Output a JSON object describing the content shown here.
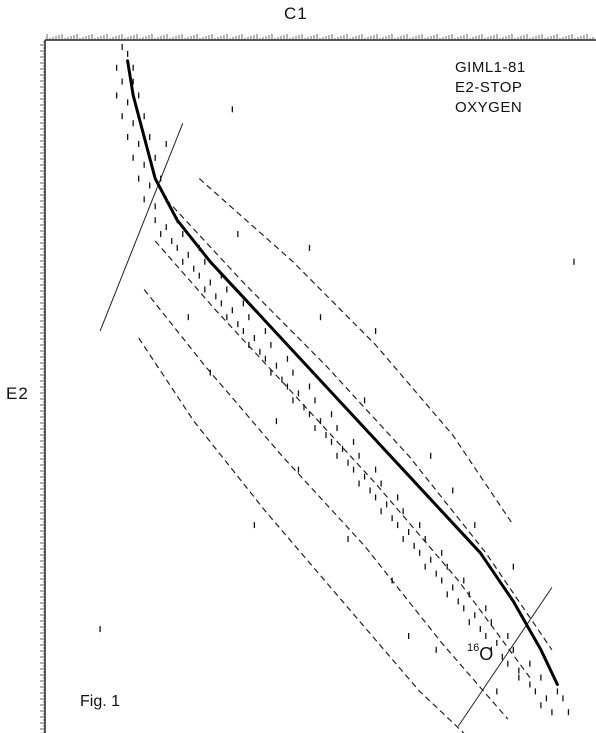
{
  "chart_data": {
    "type": "scatter",
    "title": "",
    "xlabel": "C1",
    "ylabel": "E2",
    "legend": {
      "lines": [
        "GIML1-81",
        "E2-STOP",
        "OXYGEN"
      ],
      "placement": "top-right"
    },
    "figure_label": "Fig. 1",
    "isotope_label": {
      "mass": "16",
      "symbol": "O"
    },
    "grid": false,
    "axes_visible": "top and left edges with dense tick-mark readout",
    "xlim": [
      0,
      100
    ],
    "ylim": [
      0,
      100
    ],
    "mean_curve": {
      "label": "16O",
      "style": "solid-thick",
      "points": [
        [
          15,
          97
        ],
        [
          16,
          92
        ],
        [
          18,
          86
        ],
        [
          20,
          80
        ],
        [
          24,
          74
        ],
        [
          30,
          68
        ],
        [
          37,
          62
        ],
        [
          44,
          56
        ],
        [
          51,
          50
        ],
        [
          58,
          44
        ],
        [
          65,
          38
        ],
        [
          72,
          32
        ],
        [
          79,
          26
        ],
        [
          85,
          19
        ],
        [
          90,
          12
        ],
        [
          93,
          7
        ]
      ]
    },
    "band_lines": [
      {
        "style": "dashed",
        "points": [
          [
            28,
            80
          ],
          [
            45,
            68
          ],
          [
            60,
            56
          ],
          [
            74,
            43
          ],
          [
            85,
            30
          ]
        ]
      },
      {
        "style": "dashed",
        "points": [
          [
            22,
            77
          ],
          [
            36,
            65
          ],
          [
            51,
            53
          ],
          [
            66,
            40
          ],
          [
            80,
            26
          ],
          [
            92,
            12
          ]
        ]
      },
      {
        "style": "dashed",
        "points": [
          [
            20,
            71
          ],
          [
            31,
            61
          ],
          [
            45,
            49
          ],
          [
            60,
            36
          ],
          [
            75,
            22
          ],
          [
            88,
            8
          ]
        ]
      },
      {
        "style": "dashed",
        "points": [
          [
            18,
            64
          ],
          [
            29,
            53
          ],
          [
            43,
            40
          ],
          [
            58,
            27
          ],
          [
            72,
            13
          ],
          [
            84,
            2
          ]
        ]
      },
      {
        "style": "dashed",
        "points": [
          [
            17,
            57
          ],
          [
            27,
            45
          ],
          [
            40,
            32
          ],
          [
            54,
            19
          ],
          [
            68,
            6
          ],
          [
            76,
            0
          ]
        ]
      }
    ],
    "gate_lines": [
      {
        "style": "solid-thin",
        "points": [
          [
            10,
            58
          ],
          [
            25,
            88
          ]
        ]
      },
      {
        "style": "solid-thin",
        "points": [
          [
            75,
            1
          ],
          [
            92,
            21
          ]
        ]
      }
    ],
    "point_marker": "vertical-tick",
    "scatter_density": "dense events clustered along the mean curve, about ±4% spread, with sparse stray events",
    "points": [
      [
        14,
        99
      ],
      [
        15,
        98
      ],
      [
        13,
        96
      ],
      [
        16,
        96
      ],
      [
        14,
        94
      ],
      [
        16,
        94
      ],
      [
        13,
        92
      ],
      [
        15,
        91
      ],
      [
        17,
        92
      ],
      [
        14,
        89
      ],
      [
        16,
        88
      ],
      [
        18,
        89
      ],
      [
        15,
        86
      ],
      [
        17,
        85
      ],
      [
        19,
        86
      ],
      [
        16,
        83
      ],
      [
        18,
        82
      ],
      [
        20,
        83
      ],
      [
        17,
        80
      ],
      [
        19,
        79
      ],
      [
        21,
        80
      ],
      [
        18,
        77
      ],
      [
        20,
        76
      ],
      [
        22,
        77
      ],
      [
        20,
        74
      ],
      [
        22,
        73
      ],
      [
        24,
        74
      ],
      [
        21,
        72
      ],
      [
        23,
        71
      ],
      [
        25,
        72
      ],
      [
        24,
        70
      ],
      [
        26,
        69
      ],
      [
        28,
        70
      ],
      [
        25,
        68
      ],
      [
        27,
        67
      ],
      [
        29,
        68
      ],
      [
        28,
        66
      ],
      [
        30,
        65
      ],
      [
        32,
        66
      ],
      [
        29,
        64
      ],
      [
        31,
        63
      ],
      [
        33,
        64
      ],
      [
        32,
        62
      ],
      [
        34,
        61
      ],
      [
        36,
        62
      ],
      [
        33,
        60
      ],
      [
        35,
        59
      ],
      [
        37,
        60
      ],
      [
        36,
        58
      ],
      [
        38,
        57
      ],
      [
        40,
        58
      ],
      [
        37,
        56
      ],
      [
        39,
        55
      ],
      [
        41,
        56
      ],
      [
        40,
        54
      ],
      [
        42,
        53
      ],
      [
        44,
        54
      ],
      [
        41,
        52
      ],
      [
        43,
        51
      ],
      [
        45,
        52
      ],
      [
        44,
        50
      ],
      [
        46,
        49
      ],
      [
        48,
        50
      ],
      [
        45,
        48
      ],
      [
        47,
        47
      ],
      [
        49,
        48
      ],
      [
        48,
        46
      ],
      [
        50,
        45
      ],
      [
        52,
        46
      ],
      [
        49,
        44
      ],
      [
        51,
        43
      ],
      [
        53,
        44
      ],
      [
        52,
        42
      ],
      [
        54,
        41
      ],
      [
        56,
        42
      ],
      [
        53,
        40
      ],
      [
        55,
        39
      ],
      [
        57,
        40
      ],
      [
        56,
        38
      ],
      [
        58,
        37
      ],
      [
        60,
        38
      ],
      [
        57,
        36
      ],
      [
        59,
        35
      ],
      [
        61,
        36
      ],
      [
        60,
        34
      ],
      [
        62,
        33
      ],
      [
        64,
        34
      ],
      [
        61,
        32
      ],
      [
        63,
        31
      ],
      [
        65,
        32
      ],
      [
        64,
        30
      ],
      [
        66,
        29
      ],
      [
        68,
        30
      ],
      [
        65,
        28
      ],
      [
        67,
        27
      ],
      [
        69,
        28
      ],
      [
        68,
        26
      ],
      [
        70,
        25
      ],
      [
        72,
        26
      ],
      [
        69,
        24
      ],
      [
        71,
        23
      ],
      [
        73,
        24
      ],
      [
        72,
        22
      ],
      [
        74,
        21
      ],
      [
        76,
        22
      ],
      [
        73,
        20
      ],
      [
        75,
        19
      ],
      [
        77,
        20
      ],
      [
        76,
        18
      ],
      [
        78,
        17
      ],
      [
        80,
        18
      ],
      [
        77,
        16
      ],
      [
        79,
        15
      ],
      [
        81,
        16
      ],
      [
        80,
        14
      ],
      [
        82,
        13
      ],
      [
        84,
        14
      ],
      [
        81,
        12
      ],
      [
        83,
        11
      ],
      [
        85,
        12
      ],
      [
        84,
        10
      ],
      [
        86,
        9
      ],
      [
        88,
        10
      ],
      [
        86,
        8
      ],
      [
        88,
        7
      ],
      [
        90,
        8
      ],
      [
        89,
        6
      ],
      [
        91,
        5
      ],
      [
        93,
        6
      ],
      [
        90,
        4
      ],
      [
        92,
        3
      ],
      [
        94,
        5
      ],
      [
        22,
        85
      ],
      [
        35,
        72
      ],
      [
        42,
        45
      ],
      [
        50,
        60
      ],
      [
        58,
        48
      ],
      [
        63,
        22
      ],
      [
        70,
        40
      ],
      [
        78,
        30
      ],
      [
        82,
        6
      ],
      [
        55,
        28
      ],
      [
        46,
        38
      ],
      [
        30,
        52
      ],
      [
        38,
        30
      ],
      [
        66,
        14
      ],
      [
        74,
        35
      ],
      [
        26,
        60
      ],
      [
        10,
        15
      ],
      [
        96,
        68
      ],
      [
        60,
        58
      ],
      [
        85,
        24
      ],
      [
        95,
        3
      ],
      [
        34,
        90
      ],
      [
        48,
        70
      ],
      [
        71,
        12
      ]
    ]
  }
}
